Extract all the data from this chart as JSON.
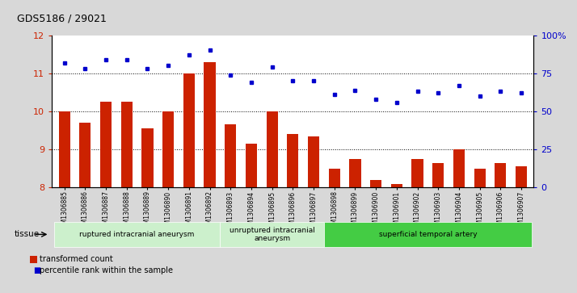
{
  "title": "GDS5186 / 29021",
  "samples": [
    "GSM1306885",
    "GSM1306886",
    "GSM1306887",
    "GSM1306888",
    "GSM1306889",
    "GSM1306890",
    "GSM1306891",
    "GSM1306892",
    "GSM1306893",
    "GSM1306894",
    "GSM1306895",
    "GSM1306896",
    "GSM1306897",
    "GSM1306898",
    "GSM1306899",
    "GSM1306900",
    "GSM1306901",
    "GSM1306902",
    "GSM1306903",
    "GSM1306904",
    "GSM1306905",
    "GSM1306906",
    "GSM1306907"
  ],
  "bar_values": [
    10.0,
    9.7,
    10.25,
    10.25,
    9.55,
    10.0,
    11.0,
    11.3,
    9.65,
    9.15,
    10.0,
    9.4,
    9.35,
    8.5,
    8.75,
    8.2,
    8.1,
    8.75,
    8.65,
    9.0,
    8.5,
    8.65,
    8.55
  ],
  "dot_values": [
    82,
    78,
    84,
    84,
    78,
    80,
    87,
    90,
    74,
    69,
    79,
    70,
    70,
    61,
    64,
    58,
    56,
    63,
    62,
    67,
    60,
    63,
    62
  ],
  "ylim_left": [
    8,
    12
  ],
  "ylim_right": [
    0,
    100
  ],
  "yticks_left": [
    8,
    9,
    10,
    11,
    12
  ],
  "yticks_right": [
    0,
    25,
    50,
    75,
    100
  ],
  "ytick_labels_right": [
    "0",
    "25",
    "50",
    "75",
    "100%"
  ],
  "bar_color": "#cc2200",
  "dot_color": "#0000cc",
  "background_color": "#d8d8d8",
  "plot_bg_color": "#ffffff",
  "group_defs": [
    {
      "start": 0,
      "end": 7,
      "label": "ruptured intracranial aneurysm",
      "color": "#ccf0cc"
    },
    {
      "start": 8,
      "end": 12,
      "label": "unruptured intracranial\naneurysm",
      "color": "#ccf0cc"
    },
    {
      "start": 13,
      "end": 22,
      "label": "superficial temporal artery",
      "color": "#44cc44"
    }
  ],
  "tissue_label": "tissue",
  "legend_bar_label": "transformed count",
  "legend_dot_label": "percentile rank within the sample"
}
